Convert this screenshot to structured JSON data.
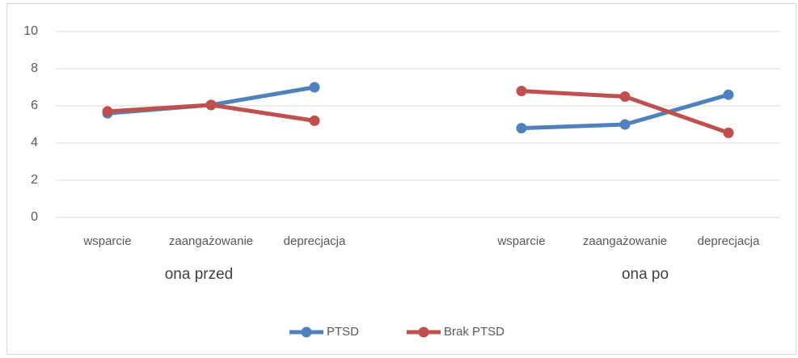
{
  "chart_data": {
    "type": "line",
    "categories": [
      "wsparcie",
      "zaangażowanie",
      "deprecjacja",
      null,
      "wsparcie",
      "zaangażowanie",
      "deprecjacja"
    ],
    "groups": [
      "ona przed",
      "ona po"
    ],
    "series": [
      {
        "name": "PTSD",
        "color": "#4f81bd",
        "values": [
          5.6,
          6.05,
          7.0,
          null,
          4.8,
          5.0,
          6.6
        ]
      },
      {
        "name": "Brak PTSD",
        "color": "#c0504d",
        "values": [
          5.7,
          6.05,
          5.2,
          null,
          6.8,
          6.5,
          4.55
        ]
      }
    ],
    "ylim": [
      0,
      10
    ],
    "yticks": [
      0,
      2,
      4,
      6,
      8,
      10
    ],
    "grid": true,
    "legend": "bottom"
  }
}
